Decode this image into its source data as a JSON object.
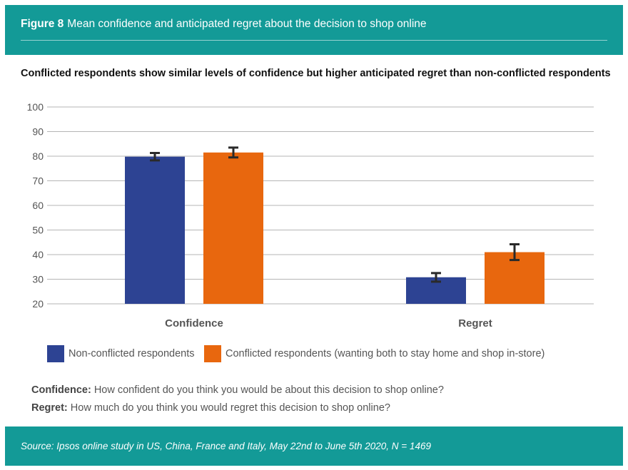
{
  "header": {
    "figure_label": "Figure 8",
    "title": "Mean confidence and anticipated regret about the decision to shop online"
  },
  "subtitle": "Conflicted respondents show similar levels of confidence but higher anticipated regret than non-conflicted respondents",
  "chart_data": {
    "type": "bar",
    "categories": [
      "Confidence",
      "Regret"
    ],
    "series": [
      {
        "name": "Non-conflicted respondents",
        "color": "#2d4393",
        "values": [
          79.8,
          30.8
        ],
        "error_low": [
          78.3,
          29.0
        ],
        "error_high": [
          81.3,
          32.5
        ]
      },
      {
        "name": "Conflicted respondents (wanting both to stay home and shop in-store)",
        "color": "#e8670e",
        "values": [
          81.5,
          41.0
        ],
        "error_low": [
          79.5,
          37.8
        ],
        "error_high": [
          83.5,
          44.2
        ]
      }
    ],
    "title": "",
    "xlabel": "",
    "ylabel": "",
    "ylim": [
      20,
      100
    ],
    "yticks": [
      20,
      30,
      40,
      50,
      60,
      70,
      80,
      90,
      100
    ],
    "grid": true,
    "legend_position": "bottom"
  },
  "definitions": [
    {
      "term": "Confidence:",
      "text": "How confident do you think you would be about this decision to shop online?"
    },
    {
      "term": "Regret:",
      "text": "How much do you think you would regret this decision to shop online?"
    }
  ],
  "footer": {
    "source": "Source: Ipsos online study in US, China, France and Italy, May 22nd to June 5th 2020, N = 1469"
  }
}
